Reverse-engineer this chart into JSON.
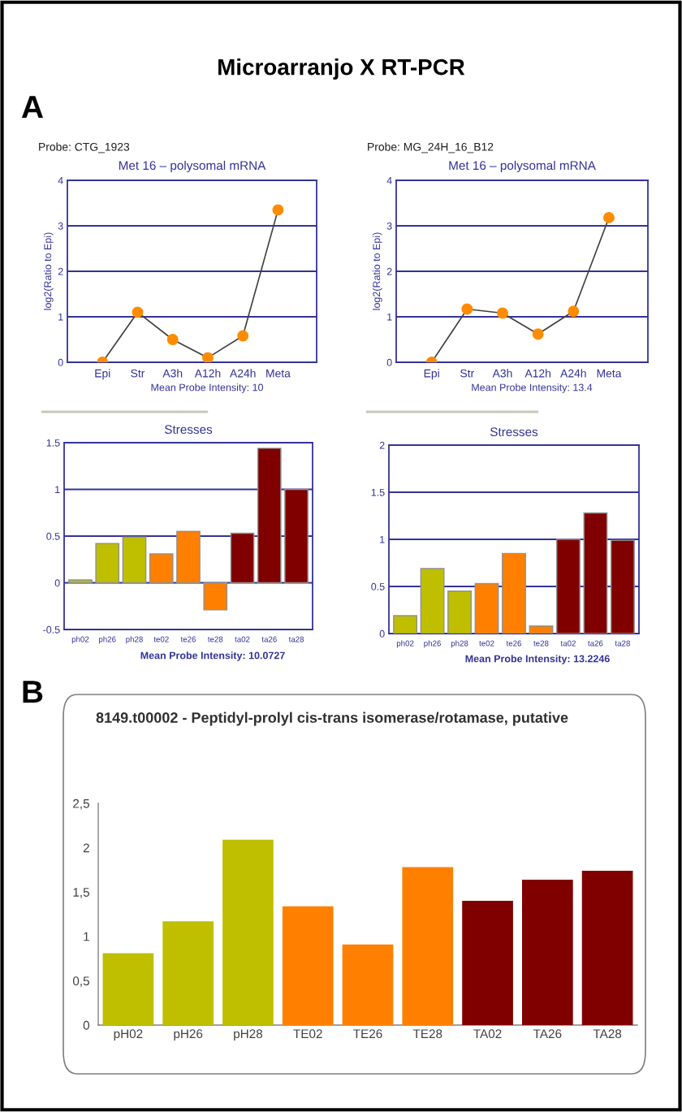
{
  "chart_data": [
    {
      "type": "line",
      "title": "Met 16 – polysomal mRNA",
      "subtitle": "Probe: CTG_1923",
      "ylabel": "log2(Ratio to Epi)",
      "annotations": [
        "Microarranjo X RT-PCR",
        "A",
        "Mean Probe Intensity: 10"
      ],
      "categories": [
        "Epi",
        "Str",
        "A3h",
        "A12h",
        "A24h",
        "Meta"
      ],
      "series": [
        {
          "color": "#ff8c00",
          "values": [
            0,
            1.1,
            0.5,
            0.1,
            0.58,
            3.35
          ]
        }
      ],
      "ylim": [
        0,
        4
      ],
      "yticks": [
        0,
        1,
        2,
        3,
        4
      ],
      "grid": "y",
      "marker": "circle"
    },
    {
      "type": "line",
      "title": "Met 16 – polysomal mRNA",
      "subtitle": "Probe: MG_24H_16_B12",
      "ylabel": "log2(Ratio to Epi)",
      "annotations": [
        "Mean Probe Intensity: 13.4"
      ],
      "categories": [
        "Epi",
        "Str",
        "A3h",
        "A12h",
        "A24h",
        "Meta"
      ],
      "series": [
        {
          "color": "#ff8c00",
          "values": [
            0,
            1.17,
            1.08,
            0.62,
            1.12,
            3.18
          ]
        }
      ],
      "ylim": [
        0,
        4
      ],
      "yticks": [
        0,
        1,
        2,
        3,
        4
      ],
      "grid": "y",
      "marker": "circle"
    },
    {
      "type": "bar",
      "title": "Stresses",
      "annotations": [
        "Mean Probe Intensity: 10.0727"
      ],
      "categories": [
        "ph02",
        "ph26",
        "ph28",
        "te02",
        "te26",
        "te28",
        "ta02",
        "ta26",
        "ta28"
      ],
      "values": [
        0.03,
        0.42,
        0.49,
        0.31,
        0.55,
        -0.29,
        0.53,
        1.44,
        1.0
      ],
      "colors": [
        "#bfbf00",
        "#bfbf00",
        "#bfbf00",
        "#ff8000",
        "#ff8000",
        "#ff8000",
        "#800000",
        "#800000",
        "#800000"
      ],
      "ylim": [
        -0.5,
        1.5
      ],
      "yticks": [
        -0.5,
        0,
        0.5,
        1,
        1.5
      ],
      "grid": "y"
    },
    {
      "type": "bar",
      "title": "Stresses",
      "annotations": [
        "Mean Probe Intensity: 13.2246"
      ],
      "categories": [
        "ph02",
        "ph26",
        "ph28",
        "te02",
        "te26",
        "te28",
        "ta02",
        "ta26",
        "ta28"
      ],
      "values": [
        0.19,
        0.69,
        0.45,
        0.53,
        0.85,
        0.08,
        1.0,
        1.28,
        0.99
      ],
      "colors": [
        "#bfbf00",
        "#bfbf00",
        "#bfbf00",
        "#ff8000",
        "#ff8000",
        "#ff8000",
        "#800000",
        "#800000",
        "#800000"
      ],
      "ylim": [
        0,
        2
      ],
      "yticks": [
        0,
        0.5,
        1,
        1.5,
        2
      ],
      "grid": "y"
    },
    {
      "type": "bar",
      "title": "8149.t00002 - Peptidyl-prolyl cis-trans isomerase/rotamase, putative",
      "annotations": [
        "B"
      ],
      "categories": [
        "pH02",
        "pH26",
        "pH28",
        "TE02",
        "TE26",
        "TE28",
        "TA02",
        "TA26",
        "TA28"
      ],
      "values": [
        0.81,
        1.17,
        2.09,
        1.34,
        0.91,
        1.78,
        1.4,
        1.64,
        1.74
      ],
      "colors": [
        "#bfbf00",
        "#bfbf00",
        "#bfbf00",
        "#ff8000",
        "#ff8000",
        "#ff8000",
        "#800000",
        "#800000",
        "#800000"
      ],
      "ylim": [
        0,
        2.5
      ],
      "yticks": [
        0,
        {
          "value": 0.5,
          "label": "0,5"
        },
        1,
        {
          "value": 1.5,
          "label": "1,5"
        },
        2,
        {
          "value": 2.5,
          "label": "2,5"
        }
      ]
    }
  ]
}
